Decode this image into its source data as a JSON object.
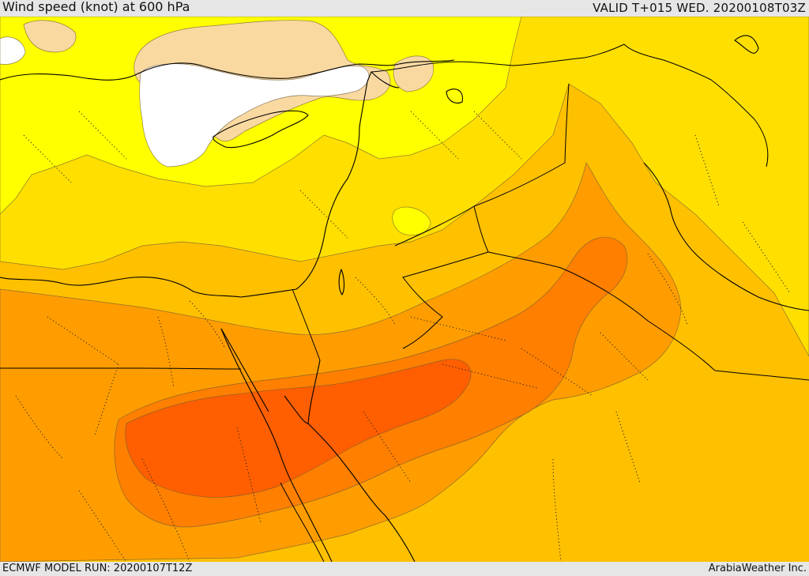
{
  "header": {
    "title": "Wind speed (knot) at 600 hPa",
    "valid": "VALID T+015 WED. 20200108T03Z"
  },
  "footer": {
    "model_run": "ECMWF MODEL RUN: 20200107T12Z",
    "credit": "ArabiaWeather Inc."
  },
  "map": {
    "field": "wind speed at 600 hPa",
    "shading_colors": {
      "lowest": "#ffffff",
      "very_low": "#fad9a1",
      "low": "#ffff00",
      "moderate_low": "#ffdf00",
      "moderate": "#ffc000",
      "moderate_high": "#ff9d00",
      "high": "#ff7f00",
      "highest": "#ff5f00"
    }
  }
}
